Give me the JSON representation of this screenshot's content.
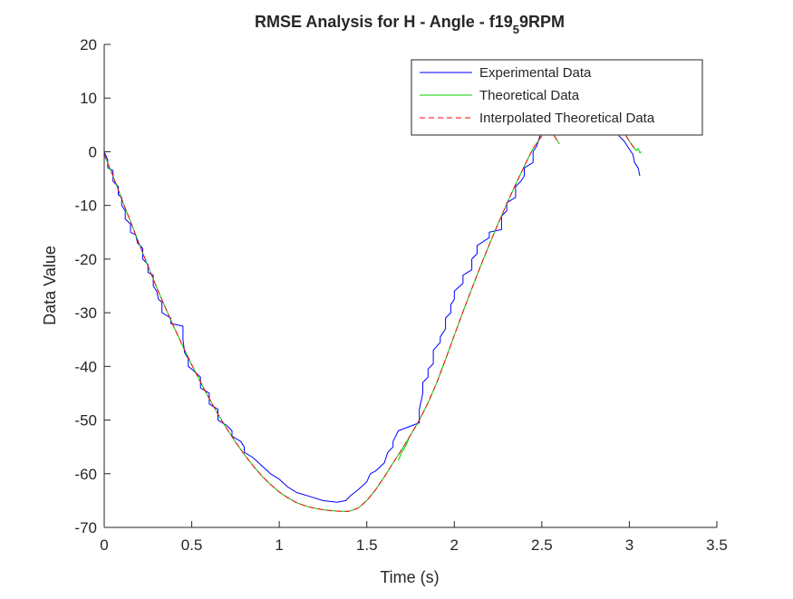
{
  "chart_data": {
    "type": "line",
    "title": {
      "prefix": "RMSE Analysis for H - Angle - f19",
      "subscript": "5",
      "suffix": "9RPM"
    },
    "xlabel": "Time (s)",
    "ylabel": "Data Value",
    "xlim": [
      0,
      3.5
    ],
    "ylim": [
      -70,
      20
    ],
    "x_ticks": [
      0,
      0.5,
      1,
      1.5,
      2,
      2.5,
      3,
      3.5
    ],
    "x_tick_labels": [
      "0",
      "0.5",
      "1",
      "1.5",
      "2",
      "2.5",
      "3",
      "3.5"
    ],
    "y_ticks": [
      -70,
      -60,
      -50,
      -40,
      -30,
      -20,
      -10,
      0,
      10,
      20
    ],
    "y_tick_labels": [
      "-70",
      "-60",
      "-50",
      "-40",
      "-30",
      "-20",
      "-10",
      "0",
      "10",
      "20"
    ],
    "grid": false,
    "legend_position": "top-right",
    "series": [
      {
        "name": "Experimental Data",
        "color": "#0000ff",
        "style": "solid",
        "points": [
          [
            0.0,
            0.0
          ],
          [
            0.02,
            -1.5
          ],
          [
            0.02,
            -3.0
          ],
          [
            0.05,
            -3.5
          ],
          [
            0.05,
            -5.5
          ],
          [
            0.08,
            -6.5
          ],
          [
            0.08,
            -8.0
          ],
          [
            0.1,
            -8.5
          ],
          [
            0.1,
            -10.0
          ],
          [
            0.12,
            -11.0
          ],
          [
            0.12,
            -12.5
          ],
          [
            0.15,
            -13.5
          ],
          [
            0.15,
            -15.0
          ],
          [
            0.18,
            -15.5
          ],
          [
            0.19,
            -17.0
          ],
          [
            0.22,
            -18.0
          ],
          [
            0.22,
            -20.0
          ],
          [
            0.25,
            -21.0
          ],
          [
            0.25,
            -22.5
          ],
          [
            0.28,
            -23.0
          ],
          [
            0.28,
            -25.0
          ],
          [
            0.3,
            -26.0
          ],
          [
            0.31,
            -27.5
          ],
          [
            0.33,
            -28.0
          ],
          [
            0.33,
            -30.0
          ],
          [
            0.38,
            -31.0
          ],
          [
            0.38,
            -32.0
          ],
          [
            0.45,
            -32.5
          ],
          [
            0.45,
            -35.0
          ],
          [
            0.46,
            -37.5
          ],
          [
            0.48,
            -38.5
          ],
          [
            0.48,
            -40.0
          ],
          [
            0.5,
            -40.5
          ],
          [
            0.55,
            -42.0
          ],
          [
            0.55,
            -44.0
          ],
          [
            0.6,
            -45.0
          ],
          [
            0.6,
            -47.0
          ],
          [
            0.65,
            -48.0
          ],
          [
            0.65,
            -50.0
          ],
          [
            0.7,
            -51.0
          ],
          [
            0.73,
            -52.0
          ],
          [
            0.73,
            -53.0
          ],
          [
            0.78,
            -54.0
          ],
          [
            0.8,
            -55.0
          ],
          [
            0.8,
            -56.0
          ],
          [
            0.85,
            -57.0
          ],
          [
            0.9,
            -58.5
          ],
          [
            0.95,
            -60.0
          ],
          [
            1.0,
            -61.0
          ],
          [
            1.05,
            -62.5
          ],
          [
            1.1,
            -63.5
          ],
          [
            1.18,
            -64.3
          ],
          [
            1.25,
            -65.0
          ],
          [
            1.33,
            -65.3
          ],
          [
            1.38,
            -65.0
          ],
          [
            1.41,
            -64.0
          ],
          [
            1.45,
            -63.0
          ],
          [
            1.5,
            -61.5
          ],
          [
            1.52,
            -60.0
          ],
          [
            1.55,
            -59.5
          ],
          [
            1.6,
            -58.0
          ],
          [
            1.62,
            -56.0
          ],
          [
            1.65,
            -55.0
          ],
          [
            1.65,
            -54.0
          ],
          [
            1.68,
            -52.0
          ],
          [
            1.8,
            -50.5
          ],
          [
            1.8,
            -48.0
          ],
          [
            1.82,
            -45.0
          ],
          [
            1.82,
            -43.0
          ],
          [
            1.85,
            -42.0
          ],
          [
            1.85,
            -40.5
          ],
          [
            1.88,
            -39.5
          ],
          [
            1.88,
            -37.0
          ],
          [
            1.92,
            -35.5
          ],
          [
            1.92,
            -34.5
          ],
          [
            1.95,
            -33.0
          ],
          [
            1.95,
            -31.0
          ],
          [
            1.98,
            -30.0
          ],
          [
            1.98,
            -28.5
          ],
          [
            2.0,
            -27.5
          ],
          [
            2.0,
            -26.0
          ],
          [
            2.05,
            -24.5
          ],
          [
            2.05,
            -23.0
          ],
          [
            2.1,
            -22.0
          ],
          [
            2.1,
            -20.0
          ],
          [
            2.13,
            -19.0
          ],
          [
            2.13,
            -17.5
          ],
          [
            2.2,
            -16.0
          ],
          [
            2.2,
            -15.0
          ],
          [
            2.27,
            -14.5
          ],
          [
            2.27,
            -12.0
          ],
          [
            2.3,
            -11.0
          ],
          [
            2.3,
            -9.5
          ],
          [
            2.35,
            -8.5
          ],
          [
            2.35,
            -6.5
          ],
          [
            2.38,
            -5.5
          ],
          [
            2.4,
            -4.5
          ],
          [
            2.4,
            -3.0
          ],
          [
            2.45,
            -2.0
          ],
          [
            2.45,
            0.0
          ],
          [
            2.47,
            1.0
          ],
          [
            2.48,
            2.0
          ],
          [
            2.49,
            3.0
          ],
          null,
          [
            2.94,
            3.0
          ],
          [
            2.97,
            2.0
          ],
          [
            3.0,
            0.5
          ],
          [
            3.02,
            -0.5
          ],
          [
            3.03,
            -2.0
          ],
          [
            3.05,
            -3.0
          ],
          [
            3.06,
            -4.5
          ]
        ]
      },
      {
        "name": "Theoretical Data",
        "color": "#00cc00",
        "style": "solid",
        "points": [
          [
            0.0,
            -0.5
          ],
          [
            0.05,
            -4.5
          ],
          [
            0.1,
            -8.8
          ],
          [
            0.15,
            -13.0
          ],
          [
            0.2,
            -17.2
          ],
          [
            0.25,
            -21.3
          ],
          [
            0.3,
            -25.3
          ],
          [
            0.35,
            -29.1
          ],
          [
            0.4,
            -32.8
          ],
          [
            0.45,
            -36.3
          ],
          [
            0.5,
            -39.7
          ],
          [
            0.55,
            -42.9
          ],
          [
            0.6,
            -46.0
          ],
          [
            0.65,
            -48.9
          ],
          [
            0.7,
            -51.6
          ],
          [
            0.75,
            -54.1
          ],
          [
            0.8,
            -56.4
          ],
          [
            0.85,
            -58.5
          ],
          [
            0.9,
            -60.4
          ],
          [
            0.95,
            -62.0
          ],
          [
            1.0,
            -63.4
          ],
          [
            1.05,
            -64.5
          ],
          [
            1.1,
            -65.4
          ],
          [
            1.15,
            -66.0
          ],
          [
            1.2,
            -66.4
          ],
          [
            1.25,
            -66.7
          ],
          [
            1.3,
            -66.9
          ],
          [
            1.35,
            -67.0
          ],
          [
            1.4,
            -67.0
          ],
          [
            1.45,
            -66.4
          ],
          [
            1.5,
            -65.0
          ],
          [
            1.55,
            -63.0
          ],
          [
            1.6,
            -60.6
          ],
          [
            1.65,
            -58.0
          ],
          [
            1.7,
            -55.5
          ],
          [
            1.75,
            -52.8
          ],
          [
            1.8,
            -50.0
          ],
          [
            1.85,
            -46.8
          ],
          [
            1.9,
            -43.0
          ],
          [
            1.95,
            -38.7
          ],
          [
            2.0,
            -34.2
          ],
          [
            2.05,
            -29.8
          ],
          [
            2.1,
            -25.5
          ],
          [
            2.15,
            -21.3
          ],
          [
            2.2,
            -17.3
          ],
          [
            2.25,
            -13.4
          ],
          [
            2.3,
            -9.7
          ],
          [
            2.35,
            -6.1
          ],
          [
            2.4,
            -2.7
          ],
          [
            2.45,
            0.6
          ],
          [
            2.5,
            3.0
          ],
          null,
          [
            2.57,
            3.0
          ],
          [
            2.6,
            1.5
          ],
          null,
          [
            1.68,
            -57.5
          ],
          [
            1.7,
            -56.0
          ],
          [
            1.72,
            -55.0
          ],
          [
            1.74,
            -53.5
          ],
          null,
          [
            2.98,
            3.0
          ],
          [
            3.0,
            2.0
          ],
          [
            3.02,
            1.0
          ],
          [
            3.04,
            0.2
          ],
          [
            3.05,
            0.6
          ],
          [
            3.06,
            -0.2
          ],
          [
            3.07,
            0.0
          ]
        ]
      },
      {
        "name": "Interpolated Theoretical Data",
        "color": "#ff0000",
        "style": "dashed",
        "points": [
          [
            0.0,
            -0.5
          ],
          [
            0.05,
            -4.5
          ],
          [
            0.1,
            -8.8
          ],
          [
            0.15,
            -13.0
          ],
          [
            0.2,
            -17.2
          ],
          [
            0.25,
            -21.3
          ],
          [
            0.3,
            -25.3
          ],
          [
            0.35,
            -29.1
          ],
          [
            0.4,
            -32.8
          ],
          [
            0.45,
            -36.3
          ],
          [
            0.5,
            -39.7
          ],
          [
            0.55,
            -42.9
          ],
          [
            0.6,
            -46.0
          ],
          [
            0.65,
            -48.9
          ],
          [
            0.7,
            -51.6
          ],
          [
            0.75,
            -54.1
          ],
          [
            0.8,
            -56.4
          ],
          [
            0.85,
            -58.5
          ],
          [
            0.9,
            -60.4
          ],
          [
            0.95,
            -62.0
          ],
          [
            1.0,
            -63.4
          ],
          [
            1.05,
            -64.5
          ],
          [
            1.1,
            -65.4
          ],
          [
            1.15,
            -66.0
          ],
          [
            1.2,
            -66.4
          ],
          [
            1.25,
            -66.7
          ],
          [
            1.3,
            -66.9
          ],
          [
            1.35,
            -67.0
          ],
          [
            1.4,
            -67.0
          ],
          [
            1.45,
            -66.4
          ],
          [
            1.5,
            -65.0
          ],
          [
            1.55,
            -63.0
          ],
          [
            1.6,
            -60.6
          ],
          [
            1.65,
            -58.0
          ],
          [
            1.7,
            -55.5
          ],
          [
            1.75,
            -52.8
          ],
          [
            1.8,
            -50.0
          ],
          [
            1.85,
            -46.8
          ],
          [
            1.9,
            -43.0
          ],
          [
            1.95,
            -38.7
          ],
          [
            2.0,
            -34.2
          ],
          [
            2.05,
            -29.8
          ],
          [
            2.1,
            -25.5
          ],
          [
            2.15,
            -21.3
          ],
          [
            2.2,
            -17.3
          ],
          [
            2.25,
            -13.4
          ],
          [
            2.3,
            -9.7
          ],
          [
            2.35,
            -6.1
          ],
          [
            2.4,
            -2.7
          ],
          [
            2.45,
            0.6
          ],
          [
            2.5,
            3.0
          ],
          null,
          [
            2.57,
            3.0
          ],
          [
            2.6,
            1.5
          ],
          null,
          [
            2.98,
            3.0
          ],
          [
            3.0,
            2.0
          ],
          [
            3.02,
            1.0
          ],
          [
            3.04,
            0.3
          ]
        ]
      }
    ]
  }
}
